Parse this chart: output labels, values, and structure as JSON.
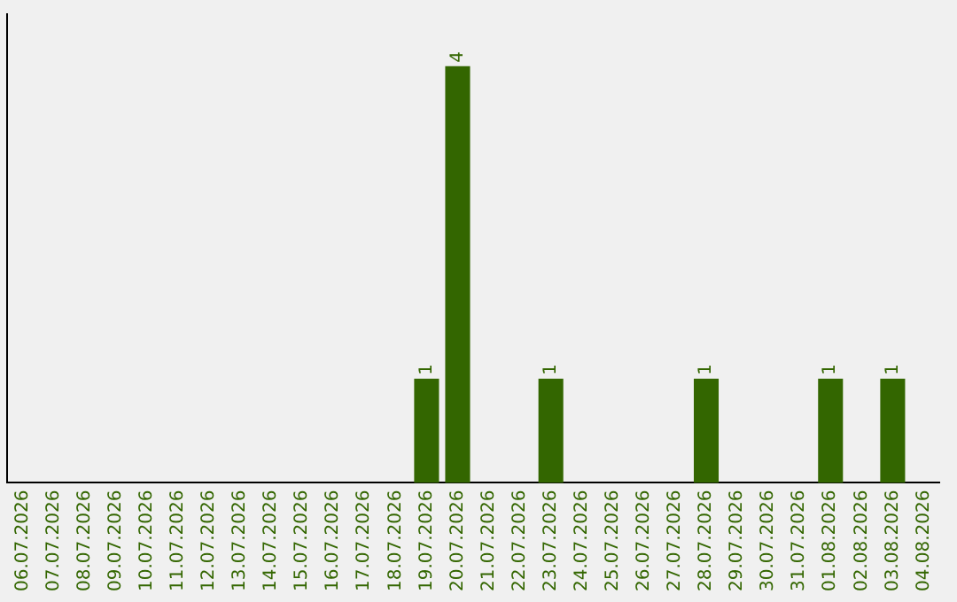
{
  "chart_data": {
    "type": "bar",
    "categories": [
      "06.07.2026",
      "07.07.2026",
      "08.07.2026",
      "09.07.2026",
      "10.07.2026",
      "11.07.2026",
      "12.07.2026",
      "13.07.2026",
      "14.07.2026",
      "15.07.2026",
      "16.07.2026",
      "17.07.2026",
      "18.07.2026",
      "19.07.2026",
      "20.07.2026",
      "21.07.2026",
      "22.07.2026",
      "23.07.2026",
      "24.07.2026",
      "25.07.2026",
      "26.07.2026",
      "27.07.2026",
      "28.07.2026",
      "29.07.2026",
      "30.07.2026",
      "31.07.2026",
      "01.08.2026",
      "02.08.2026",
      "03.08.2026",
      "04.08.2026"
    ],
    "values": [
      null,
      null,
      null,
      null,
      null,
      null,
      null,
      null,
      null,
      null,
      null,
      null,
      null,
      1,
      4,
      null,
      null,
      1,
      null,
      null,
      null,
      null,
      1,
      null,
      null,
      null,
      1,
      null,
      1,
      null
    ],
    "value_labels": [
      null,
      null,
      null,
      null,
      null,
      null,
      null,
      null,
      null,
      null,
      null,
      null,
      null,
      "1",
      "4",
      null,
      null,
      "1",
      null,
      null,
      null,
      null,
      "1",
      null,
      null,
      null,
      "1",
      null,
      "1",
      null
    ],
    "color": "#336600",
    "grid": false,
    "legend": false,
    "tick_labels": "x"
  }
}
